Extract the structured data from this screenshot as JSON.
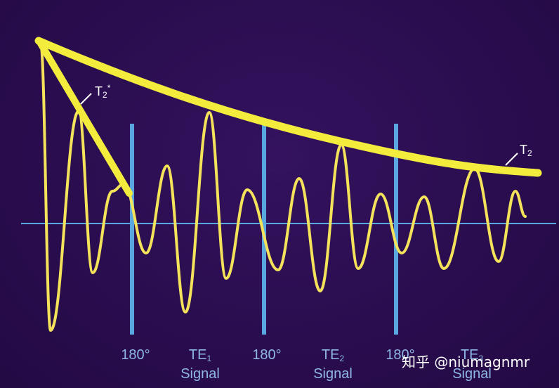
{
  "labels": {
    "t2star": {
      "base": "T",
      "sub": "2",
      "sup": "*"
    },
    "t2": {
      "base": "T",
      "sub": "2"
    },
    "pulse1": "180°",
    "pulse2": "180°",
    "pulse3": "180°",
    "te1": {
      "base": "TE",
      "sub": "1",
      "word": "Signal"
    },
    "te2": {
      "base": "TE",
      "sub": "2",
      "word": "Signal"
    },
    "te3": {
      "base": "TE",
      "sub": "3",
      "word": "Signal"
    }
  },
  "watermark": "知乎 @niumagnmr",
  "colors": {
    "background": "#2a0d4f",
    "signal": "#f3e25a",
    "envelope": "#f4ec3c",
    "pulse_line": "#5aa6e0",
    "baseline": "#5aa6e0",
    "label": "#8fb7e6"
  }
}
